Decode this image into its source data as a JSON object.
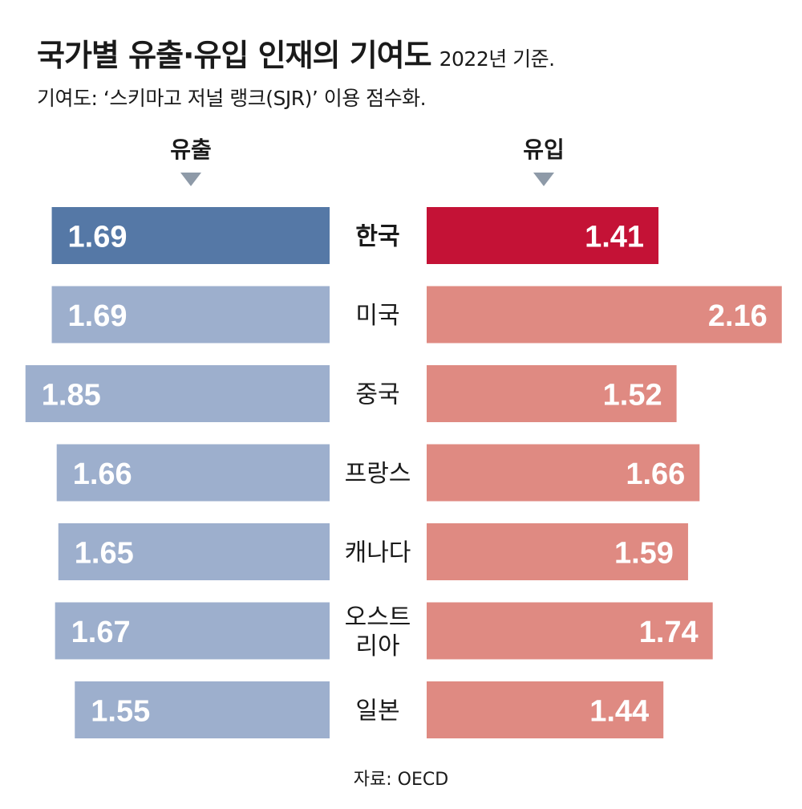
{
  "header": {
    "title": "국가별 유출·유입 인재의 기여도",
    "title_note": "2022년 기준.",
    "subtitle": "기여도: ‘스키마고 저널 랭크(SJR)’ 이용 점수화."
  },
  "column_heads": {
    "outflow": "유출",
    "inflow": "유입"
  },
  "source": "자료: OECD",
  "colors": {
    "outflow_highlight": "#5578a6",
    "outflow": "#9dafcd",
    "inflow_highlight": "#c41236",
    "inflow": "#df8a82"
  },
  "chart_data": {
    "type": "bar",
    "categories": [
      "한국",
      "미국",
      "중국",
      "프랑스",
      "캐나다",
      "오스트리아",
      "일본"
    ],
    "category_lines": [
      [
        "한국"
      ],
      [
        "미국"
      ],
      [
        "중국"
      ],
      [
        "프랑스"
      ],
      [
        "캐나다"
      ],
      [
        "오스트",
        "리아"
      ],
      [
        "일본"
      ]
    ],
    "highlight": "한국",
    "series": [
      {
        "name": "유출",
        "values": [
          1.69,
          1.69,
          1.85,
          1.66,
          1.65,
          1.67,
          1.55
        ]
      },
      {
        "name": "유입",
        "values": [
          1.41,
          2.16,
          1.52,
          1.66,
          1.59,
          1.74,
          1.44
        ]
      }
    ]
  }
}
